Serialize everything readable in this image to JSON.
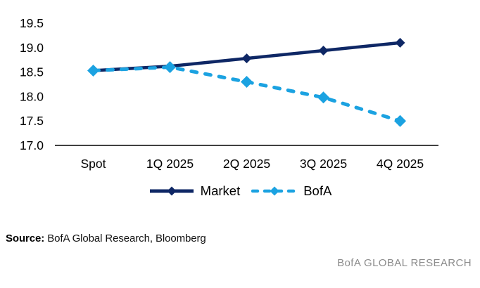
{
  "chart_data": {
    "type": "line",
    "categories": [
      "Spot",
      "1Q 2025",
      "2Q 2025",
      "3Q 2025",
      "4Q 2025"
    ],
    "series": [
      {
        "name": "Market",
        "color": "#0e2765",
        "style": "solid",
        "marker": "diamond",
        "values": [
          18.53,
          18.62,
          18.78,
          18.94,
          19.1
        ]
      },
      {
        "name": "BofA",
        "color": "#1ba2e1",
        "style": "dashed",
        "marker": "diamond",
        "values": [
          18.53,
          18.6,
          18.3,
          17.98,
          17.5
        ]
      }
    ],
    "title": "",
    "xlabel": "",
    "ylabel": "",
    "ylim": [
      17.0,
      19.5
    ],
    "yticks": [
      19.5,
      19.0,
      18.5,
      18.0,
      17.5,
      17.0
    ],
    "grid": false,
    "legend_position": "bottom",
    "axis_color": "#000000"
  },
  "footer": {
    "source_label": "Source:",
    "source_text": "BofA Global Research, Bloomberg",
    "brand": "BofA GLOBAL RESEARCH"
  }
}
